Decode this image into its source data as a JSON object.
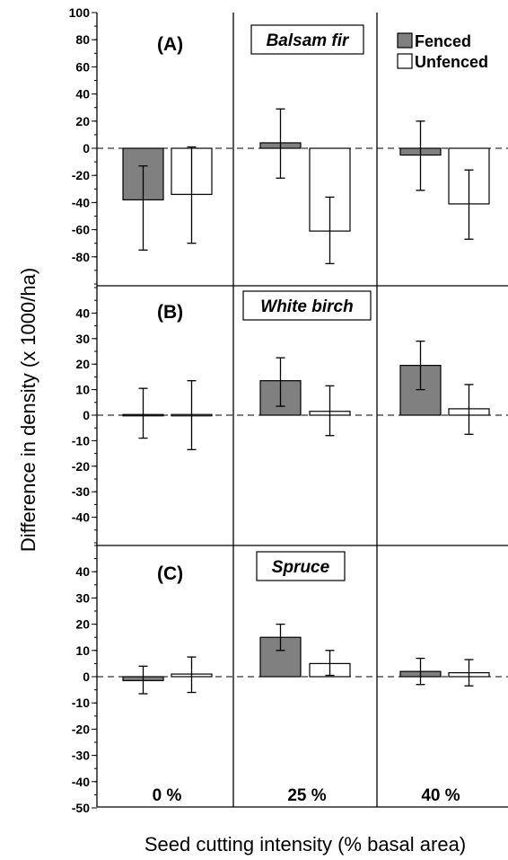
{
  "chart_data": {
    "type": "bar",
    "categories": [
      "0 %",
      "25 %",
      "40 %"
    ],
    "xlabel": "Seed cutting intensity (% basal area)",
    "ylabel": "Difference in density (x 1000/ha)",
    "legend": {
      "placement": "top-right",
      "entries": [
        {
          "label": "Fenced",
          "color": "#808080"
        },
        {
          "label": "Unfenced",
          "color": "#ffffff"
        }
      ]
    },
    "colors": {
      "fenced": "#808080",
      "unfenced": "#ffffff",
      "axis": "#000000"
    },
    "panels": [
      {
        "letter": "(A)",
        "species": "Balsam fir",
        "ylim": [
          -100,
          100
        ],
        "yticks": [
          100,
          80,
          60,
          40,
          20,
          0,
          -20,
          -40,
          -60,
          -80
        ],
        "series": [
          {
            "name": "Fenced",
            "values": [
              -38,
              4,
              -5
            ],
            "err_low": [
              -75,
              -22,
              -31
            ],
            "err_high": [
              -13,
              29,
              20
            ]
          },
          {
            "name": "Unfenced",
            "values": [
              -34,
              -61,
              -41
            ],
            "err_low": [
              -70,
              -85,
              -67
            ],
            "err_high": [
              1,
              -36,
              -16
            ]
          }
        ]
      },
      {
        "letter": "(B)",
        "species": "White birch",
        "ylim": [
          -50,
          50
        ],
        "yticks": [
          40,
          30,
          20,
          10,
          0,
          -10,
          -20,
          -30,
          -40
        ],
        "series": [
          {
            "name": "Fenced",
            "values": [
              0.5,
              13.5,
              19.5
            ],
            "err_low": [
              -9,
              3.5,
              10
            ],
            "err_high": [
              10.5,
              22.5,
              29
            ]
          },
          {
            "name": "Unfenced",
            "values": [
              0,
              1.5,
              2.5
            ],
            "err_low": [
              -13.5,
              -8,
              -7.5
            ],
            "err_high": [
              13.5,
              11.5,
              12
            ]
          }
        ]
      },
      {
        "letter": "(C)",
        "species": "Spruce",
        "ylim": [
          -50,
          50
        ],
        "yticks": [
          40,
          30,
          20,
          10,
          0,
          -10,
          -20,
          -30,
          -40,
          -50
        ],
        "series": [
          {
            "name": "Fenced",
            "values": [
              -1.5,
              15,
              2
            ],
            "err_low": [
              -6.5,
              10,
              -3
            ],
            "err_high": [
              4,
              20,
              7
            ]
          },
          {
            "name": "Unfenced",
            "values": [
              1,
              5,
              1.5
            ],
            "err_low": [
              -6,
              0.5,
              -3.5
            ],
            "err_high": [
              7.5,
              10,
              6.5
            ]
          }
        ]
      }
    ]
  }
}
